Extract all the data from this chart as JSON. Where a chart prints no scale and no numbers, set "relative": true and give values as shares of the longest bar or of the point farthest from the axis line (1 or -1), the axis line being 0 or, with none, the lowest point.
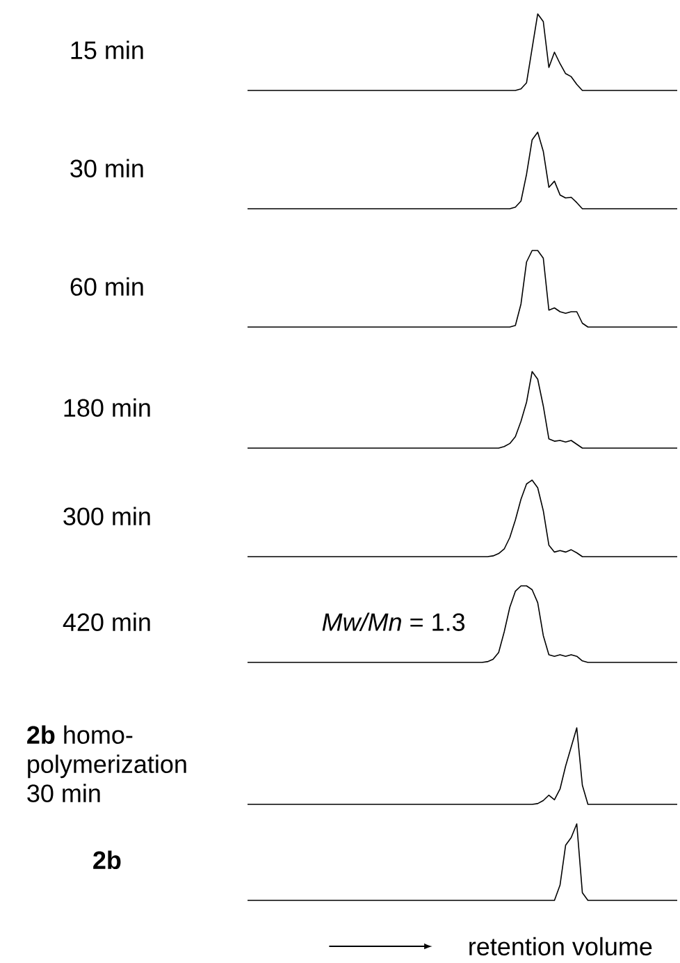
{
  "chart_data": [
    {
      "type": "line",
      "title": "15 min",
      "relative": true,
      "color": "#000000",
      "categories": [
        null,
        null,
        null,
        null,
        null,
        null,
        null,
        null,
        null,
        null,
        null,
        null,
        null,
        null,
        null,
        null,
        null,
        null,
        null,
        null,
        null,
        null,
        null,
        null,
        null,
        null,
        null,
        null,
        null,
        null,
        null,
        null,
        null,
        null,
        null,
        null,
        null,
        null,
        null,
        null,
        null,
        null,
        null,
        null,
        null,
        null,
        null,
        null,
        null,
        null,
        null,
        null,
        null,
        null,
        null,
        null,
        null,
        null,
        null,
        null,
        null,
        null,
        null,
        null,
        null,
        null,
        null,
        null,
        null,
        null,
        null,
        null,
        null,
        null,
        null,
        null,
        null,
        null
      ],
      "values": [
        0,
        0,
        0,
        0,
        0,
        0,
        0,
        0,
        0,
        0,
        0,
        0,
        0,
        0,
        0,
        0,
        0,
        0,
        0,
        0,
        0,
        0,
        0,
        0,
        0,
        0,
        0,
        0,
        0,
        0,
        0,
        0,
        0,
        0,
        0,
        0,
        0,
        0,
        0,
        0,
        0,
        0,
        0,
        0,
        0,
        0,
        0,
        0,
        0,
        0.02,
        0.1,
        0.55,
        1,
        0.9,
        0.3,
        0.5,
        0.35,
        0.22,
        0.18,
        0.08,
        0,
        0,
        0,
        0,
        0,
        0,
        0,
        0,
        0,
        0,
        0,
        0,
        0,
        0,
        0,
        0,
        0,
        0
      ]
    },
    {
      "type": "line",
      "title": "30 min",
      "relative": true,
      "color": "#000000",
      "categories": [
        null,
        null,
        null,
        null,
        null,
        null,
        null,
        null,
        null,
        null,
        null,
        null,
        null,
        null,
        null,
        null,
        null,
        null,
        null,
        null,
        null,
        null,
        null,
        null,
        null,
        null,
        null,
        null,
        null,
        null,
        null,
        null,
        null,
        null,
        null,
        null,
        null,
        null,
        null,
        null,
        null,
        null,
        null,
        null,
        null,
        null,
        null,
        null,
        null,
        null,
        null,
        null,
        null,
        null,
        null,
        null,
        null,
        null,
        null,
        null,
        null,
        null,
        null,
        null,
        null,
        null,
        null,
        null,
        null,
        null,
        null,
        null,
        null,
        null,
        null,
        null,
        null,
        null
      ],
      "values": [
        0,
        0,
        0,
        0,
        0,
        0,
        0,
        0,
        0,
        0,
        0,
        0,
        0,
        0,
        0,
        0,
        0,
        0,
        0,
        0,
        0,
        0,
        0,
        0,
        0,
        0,
        0,
        0,
        0,
        0,
        0,
        0,
        0,
        0,
        0,
        0,
        0,
        0,
        0,
        0,
        0,
        0,
        0,
        0,
        0,
        0,
        0,
        0,
        0.02,
        0.1,
        0.45,
        0.9,
        1,
        0.75,
        0.28,
        0.36,
        0.18,
        0.14,
        0.15,
        0.08,
        0,
        0,
        0,
        0,
        0,
        0,
        0,
        0,
        0,
        0,
        0,
        0,
        0,
        0,
        0,
        0,
        0,
        0
      ]
    },
    {
      "type": "line",
      "title": "60 min",
      "relative": true,
      "color": "#000000",
      "categories": [
        null,
        null,
        null,
        null,
        null,
        null,
        null,
        null,
        null,
        null,
        null,
        null,
        null,
        null,
        null,
        null,
        null,
        null,
        null,
        null,
        null,
        null,
        null,
        null,
        null,
        null,
        null,
        null,
        null,
        null,
        null,
        null,
        null,
        null,
        null,
        null,
        null,
        null,
        null,
        null,
        null,
        null,
        null,
        null,
        null,
        null,
        null,
        null,
        null,
        null,
        null,
        null,
        null,
        null,
        null,
        null,
        null,
        null,
        null,
        null,
        null,
        null,
        null,
        null,
        null,
        null,
        null,
        null,
        null,
        null,
        null,
        null,
        null,
        null,
        null,
        null,
        null,
        null
      ],
      "values": [
        0,
        0,
        0,
        0,
        0,
        0,
        0,
        0,
        0,
        0,
        0,
        0,
        0,
        0,
        0,
        0,
        0,
        0,
        0,
        0,
        0,
        0,
        0,
        0,
        0,
        0,
        0,
        0,
        0,
        0,
        0,
        0,
        0,
        0,
        0,
        0,
        0,
        0,
        0,
        0,
        0,
        0,
        0,
        0,
        0,
        0,
        0,
        0,
        0.02,
        0.3,
        0.85,
        1,
        1,
        0.9,
        0.22,
        0.25,
        0.2,
        0.18,
        0.2,
        0.2,
        0.05,
        0,
        0,
        0,
        0,
        0,
        0,
        0,
        0,
        0,
        0,
        0,
        0,
        0,
        0,
        0,
        0,
        0
      ]
    },
    {
      "type": "line",
      "title": "180 min",
      "relative": true,
      "color": "#000000",
      "categories": [
        null,
        null,
        null,
        null,
        null,
        null,
        null,
        null,
        null,
        null,
        null,
        null,
        null,
        null,
        null,
        null,
        null,
        null,
        null,
        null,
        null,
        null,
        null,
        null,
        null,
        null,
        null,
        null,
        null,
        null,
        null,
        null,
        null,
        null,
        null,
        null,
        null,
        null,
        null,
        null,
        null,
        null,
        null,
        null,
        null,
        null,
        null,
        null,
        null,
        null,
        null,
        null,
        null,
        null,
        null,
        null,
        null,
        null,
        null,
        null,
        null,
        null,
        null,
        null,
        null,
        null,
        null,
        null,
        null,
        null,
        null,
        null,
        null,
        null,
        null,
        null,
        null,
        null
      ],
      "values": [
        0,
        0,
        0,
        0,
        0,
        0,
        0,
        0,
        0,
        0,
        0,
        0,
        0,
        0,
        0,
        0,
        0,
        0,
        0,
        0,
        0,
        0,
        0,
        0,
        0,
        0,
        0,
        0,
        0,
        0,
        0,
        0,
        0,
        0,
        0,
        0,
        0,
        0,
        0,
        0,
        0,
        0,
        0,
        0,
        0,
        0,
        0.02,
        0.06,
        0.15,
        0.35,
        0.6,
        1,
        0.9,
        0.55,
        0.12,
        0.09,
        0.1,
        0.08,
        0.1,
        0.05,
        0,
        0,
        0,
        0,
        0,
        0,
        0,
        0,
        0,
        0,
        0,
        0,
        0,
        0,
        0,
        0,
        0,
        0
      ]
    },
    {
      "type": "line",
      "title": "300 min",
      "relative": true,
      "color": "#000000",
      "categories": [
        null,
        null,
        null,
        null,
        null,
        null,
        null,
        null,
        null,
        null,
        null,
        null,
        null,
        null,
        null,
        null,
        null,
        null,
        null,
        null,
        null,
        null,
        null,
        null,
        null,
        null,
        null,
        null,
        null,
        null,
        null,
        null,
        null,
        null,
        null,
        null,
        null,
        null,
        null,
        null,
        null,
        null,
        null,
        null,
        null,
        null,
        null,
        null,
        null,
        null,
        null,
        null,
        null,
        null,
        null,
        null,
        null,
        null,
        null,
        null,
        null,
        null,
        null,
        null,
        null,
        null,
        null,
        null,
        null,
        null,
        null,
        null,
        null,
        null,
        null,
        null,
        null,
        null
      ],
      "values": [
        0,
        0,
        0,
        0,
        0,
        0,
        0,
        0,
        0,
        0,
        0,
        0,
        0,
        0,
        0,
        0,
        0,
        0,
        0,
        0,
        0,
        0,
        0,
        0,
        0,
        0,
        0,
        0,
        0,
        0,
        0,
        0,
        0,
        0,
        0,
        0,
        0,
        0,
        0,
        0,
        0,
        0,
        0,
        0,
        0.01,
        0.04,
        0.1,
        0.25,
        0.48,
        0.75,
        0.95,
        1,
        0.9,
        0.6,
        0.15,
        0.06,
        0.08,
        0.06,
        0.09,
        0.05,
        0,
        0,
        0,
        0,
        0,
        0,
        0,
        0,
        0,
        0,
        0,
        0,
        0,
        0,
        0,
        0,
        0,
        0
      ]
    },
    {
      "type": "line",
      "title": "420 min",
      "annotations": [
        "*Mw/Mn* = 1.3"
      ],
      "relative": true,
      "color": "#000000",
      "categories": [
        null,
        null,
        null,
        null,
        null,
        null,
        null,
        null,
        null,
        null,
        null,
        null,
        null,
        null,
        null,
        null,
        null,
        null,
        null,
        null,
        null,
        null,
        null,
        null,
        null,
        null,
        null,
        null,
        null,
        null,
        null,
        null,
        null,
        null,
        null,
        null,
        null,
        null,
        null,
        null,
        null,
        null,
        null,
        null,
        null,
        null,
        null,
        null,
        null,
        null,
        null,
        null,
        null,
        null,
        null,
        null,
        null,
        null,
        null,
        null,
        null,
        null,
        null,
        null,
        null,
        null,
        null,
        null,
        null,
        null,
        null,
        null,
        null,
        null,
        null,
        null,
        null,
        null
      ],
      "values": [
        0,
        0,
        0,
        0,
        0,
        0,
        0,
        0,
        0,
        0,
        0,
        0,
        0,
        0,
        0,
        0,
        0,
        0,
        0,
        0,
        0,
        0,
        0,
        0,
        0,
        0,
        0,
        0,
        0,
        0,
        0,
        0,
        0,
        0,
        0,
        0,
        0,
        0,
        0,
        0,
        0,
        0,
        0,
        0.01,
        0.04,
        0.13,
        0.4,
        0.72,
        0.93,
        1,
        1,
        0.95,
        0.78,
        0.35,
        0.1,
        0.08,
        0.1,
        0.08,
        0.1,
        0.08,
        0.02,
        0,
        0,
        0,
        0,
        0,
        0,
        0,
        0,
        0,
        0,
        0,
        0,
        0,
        0,
        0,
        0,
        0
      ]
    },
    {
      "type": "line",
      "title": "**2b** homo-polymerization 30 min",
      "relative": true,
      "color": "#000000",
      "categories": [
        null,
        null,
        null,
        null,
        null,
        null,
        null,
        null,
        null,
        null,
        null,
        null,
        null,
        null,
        null,
        null,
        null,
        null,
        null,
        null,
        null,
        null,
        null,
        null,
        null,
        null,
        null,
        null,
        null,
        null,
        null,
        null,
        null,
        null,
        null,
        null,
        null,
        null,
        null,
        null,
        null,
        null,
        null,
        null,
        null,
        null,
        null,
        null,
        null,
        null,
        null,
        null,
        null,
        null,
        null,
        null,
        null,
        null,
        null,
        null,
        null,
        null,
        null,
        null,
        null,
        null,
        null,
        null,
        null,
        null,
        null,
        null,
        null,
        null,
        null,
        null,
        null,
        null
      ],
      "values": [
        0,
        0,
        0,
        0,
        0,
        0,
        0,
        0,
        0,
        0,
        0,
        0,
        0,
        0,
        0,
        0,
        0,
        0,
        0,
        0,
        0,
        0,
        0,
        0,
        0,
        0,
        0,
        0,
        0,
        0,
        0,
        0,
        0,
        0,
        0,
        0,
        0,
        0,
        0,
        0,
        0,
        0,
        0,
        0,
        0,
        0,
        0,
        0,
        0,
        0,
        0,
        0,
        0.01,
        0.05,
        0.12,
        0.06,
        0.2,
        0.5,
        0.75,
        1,
        0.25,
        0,
        0,
        0,
        0,
        0,
        0,
        0,
        0,
        0,
        0,
        0,
        0,
        0,
        0,
        0,
        0,
        0
      ]
    },
    {
      "type": "line",
      "title": "**2b**",
      "xlabel": "retention volume",
      "relative": true,
      "color": "#000000",
      "categories": [
        null,
        null,
        null,
        null,
        null,
        null,
        null,
        null,
        null,
        null,
        null,
        null,
        null,
        null,
        null,
        null,
        null,
        null,
        null,
        null,
        null,
        null,
        null,
        null,
        null,
        null,
        null,
        null,
        null,
        null,
        null,
        null,
        null,
        null,
        null,
        null,
        null,
        null,
        null,
        null,
        null,
        null,
        null,
        null,
        null,
        null,
        null,
        null,
        null,
        null,
        null,
        null,
        null,
        null,
        null,
        null,
        null,
        null,
        null,
        null,
        null,
        null,
        null,
        null,
        null,
        null,
        null,
        null,
        null,
        null,
        null,
        null,
        null,
        null,
        null,
        null,
        null,
        null
      ],
      "values": [
        0,
        0,
        0,
        0,
        0,
        0,
        0,
        0,
        0,
        0,
        0,
        0,
        0,
        0,
        0,
        0,
        0,
        0,
        0,
        0,
        0,
        0,
        0,
        0,
        0,
        0,
        0,
        0,
        0,
        0,
        0,
        0,
        0,
        0,
        0,
        0,
        0,
        0,
        0,
        0,
        0,
        0,
        0,
        0,
        0,
        0,
        0,
        0,
        0,
        0,
        0,
        0,
        0,
        0,
        0,
        0,
        0.2,
        0.72,
        0.82,
        1,
        0.1,
        0,
        0,
        0,
        0,
        0,
        0,
        0,
        0,
        0,
        0,
        0,
        0,
        0,
        0,
        0,
        0,
        0
      ]
    }
  ]
}
